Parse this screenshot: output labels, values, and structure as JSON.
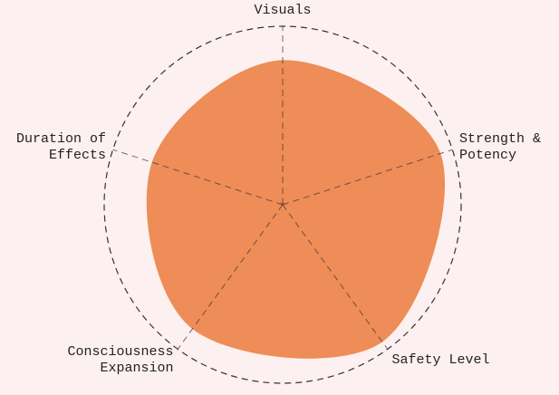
{
  "chart_data": {
    "type": "radar",
    "categories": [
      "Visuals",
      "Strength & Potency",
      "Safety Level",
      "Consciousness Expansion",
      "Duration of Effects"
    ],
    "values": [
      81,
      93,
      95,
      86,
      77
    ],
    "color": "#ee8d58",
    "rlim": [
      0,
      100
    ]
  }
}
